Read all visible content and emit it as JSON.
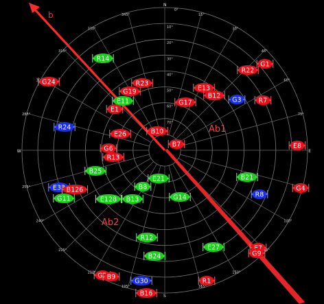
{
  "plot": {
    "cardinals": [
      {
        "text": "N",
        "az": 0
      },
      {
        "text": "E",
        "az": 90
      },
      {
        "text": "S",
        "az": 180
      },
      {
        "text": "W",
        "az": 270
      }
    ],
    "azimuth_labels": [
      "0°",
      "15°",
      "30°",
      "45°",
      "60°",
      "75°",
      "105°",
      "120°",
      "135°",
      "150°",
      "165°",
      "195°",
      "210°",
      "225°",
      "240°",
      "255°",
      "285°",
      "300°",
      "315°",
      "330°",
      "345°"
    ],
    "elevation_labels": [
      "10°",
      "20°",
      "30°",
      "40°",
      "50°",
      "60°",
      "70°"
    ],
    "regions": [
      {
        "id": "ab1",
        "label": "Ab1"
      },
      {
        "id": "ab2",
        "label": "Ab2"
      }
    ],
    "beam": {
      "label": "b",
      "color": "#ff2a2a"
    }
  },
  "satellites": [
    {
      "id": "G1",
      "color": "red"
    },
    {
      "id": "R22",
      "color": "red"
    },
    {
      "id": "R14",
      "color": "green"
    },
    {
      "id": "G24",
      "color": "red"
    },
    {
      "id": "R23",
      "color": "red"
    },
    {
      "id": "G19",
      "color": "red"
    },
    {
      "id": "E13",
      "color": "red"
    },
    {
      "id": "B12",
      "color": "red"
    },
    {
      "id": "G3",
      "color": "blue"
    },
    {
      "id": "R7",
      "color": "red"
    },
    {
      "id": "E11",
      "color": "green"
    },
    {
      "id": "G17",
      "color": "red"
    },
    {
      "id": "E1",
      "color": "red"
    },
    {
      "id": "R24",
      "color": "blue"
    },
    {
      "id": "B10",
      "color": "red"
    },
    {
      "id": "E26",
      "color": "red"
    },
    {
      "id": "B7",
      "color": "red"
    },
    {
      "id": "E8",
      "color": "red"
    },
    {
      "id": "G6",
      "color": "red"
    },
    {
      "id": "R13",
      "color": "red"
    },
    {
      "id": "B25",
      "color": "green"
    },
    {
      "id": "E21",
      "color": "green"
    },
    {
      "id": "B21",
      "color": "green"
    },
    {
      "id": "E33",
      "color": "blue"
    },
    {
      "id": "B126",
      "color": "red"
    },
    {
      "id": "B8",
      "color": "green"
    },
    {
      "id": "G4",
      "color": "red"
    },
    {
      "id": "R8",
      "color": "blue"
    },
    {
      "id": "G11",
      "color": "green"
    },
    {
      "id": "E128",
      "color": "green"
    },
    {
      "id": "B13",
      "color": "green"
    },
    {
      "id": "G14",
      "color": "green"
    },
    {
      "id": "R12",
      "color": "green"
    },
    {
      "id": "E27",
      "color": "green"
    },
    {
      "id": "E7",
      "color": "red"
    },
    {
      "id": "G9",
      "color": "red"
    },
    {
      "id": "B24",
      "color": "green"
    },
    {
      "id": "G2",
      "color": "red"
    },
    {
      "id": "B9",
      "color": "red"
    },
    {
      "id": "G30",
      "color": "blue"
    },
    {
      "id": "R1",
      "color": "red"
    },
    {
      "id": "B16",
      "color": "red"
    }
  ],
  "colors": {
    "red": "#e8101a",
    "green": "#1ad01a",
    "blue": "#1a30e8",
    "beam": "#ff2a2a",
    "grid": "#7a7a7a",
    "background": "#000000"
  }
}
